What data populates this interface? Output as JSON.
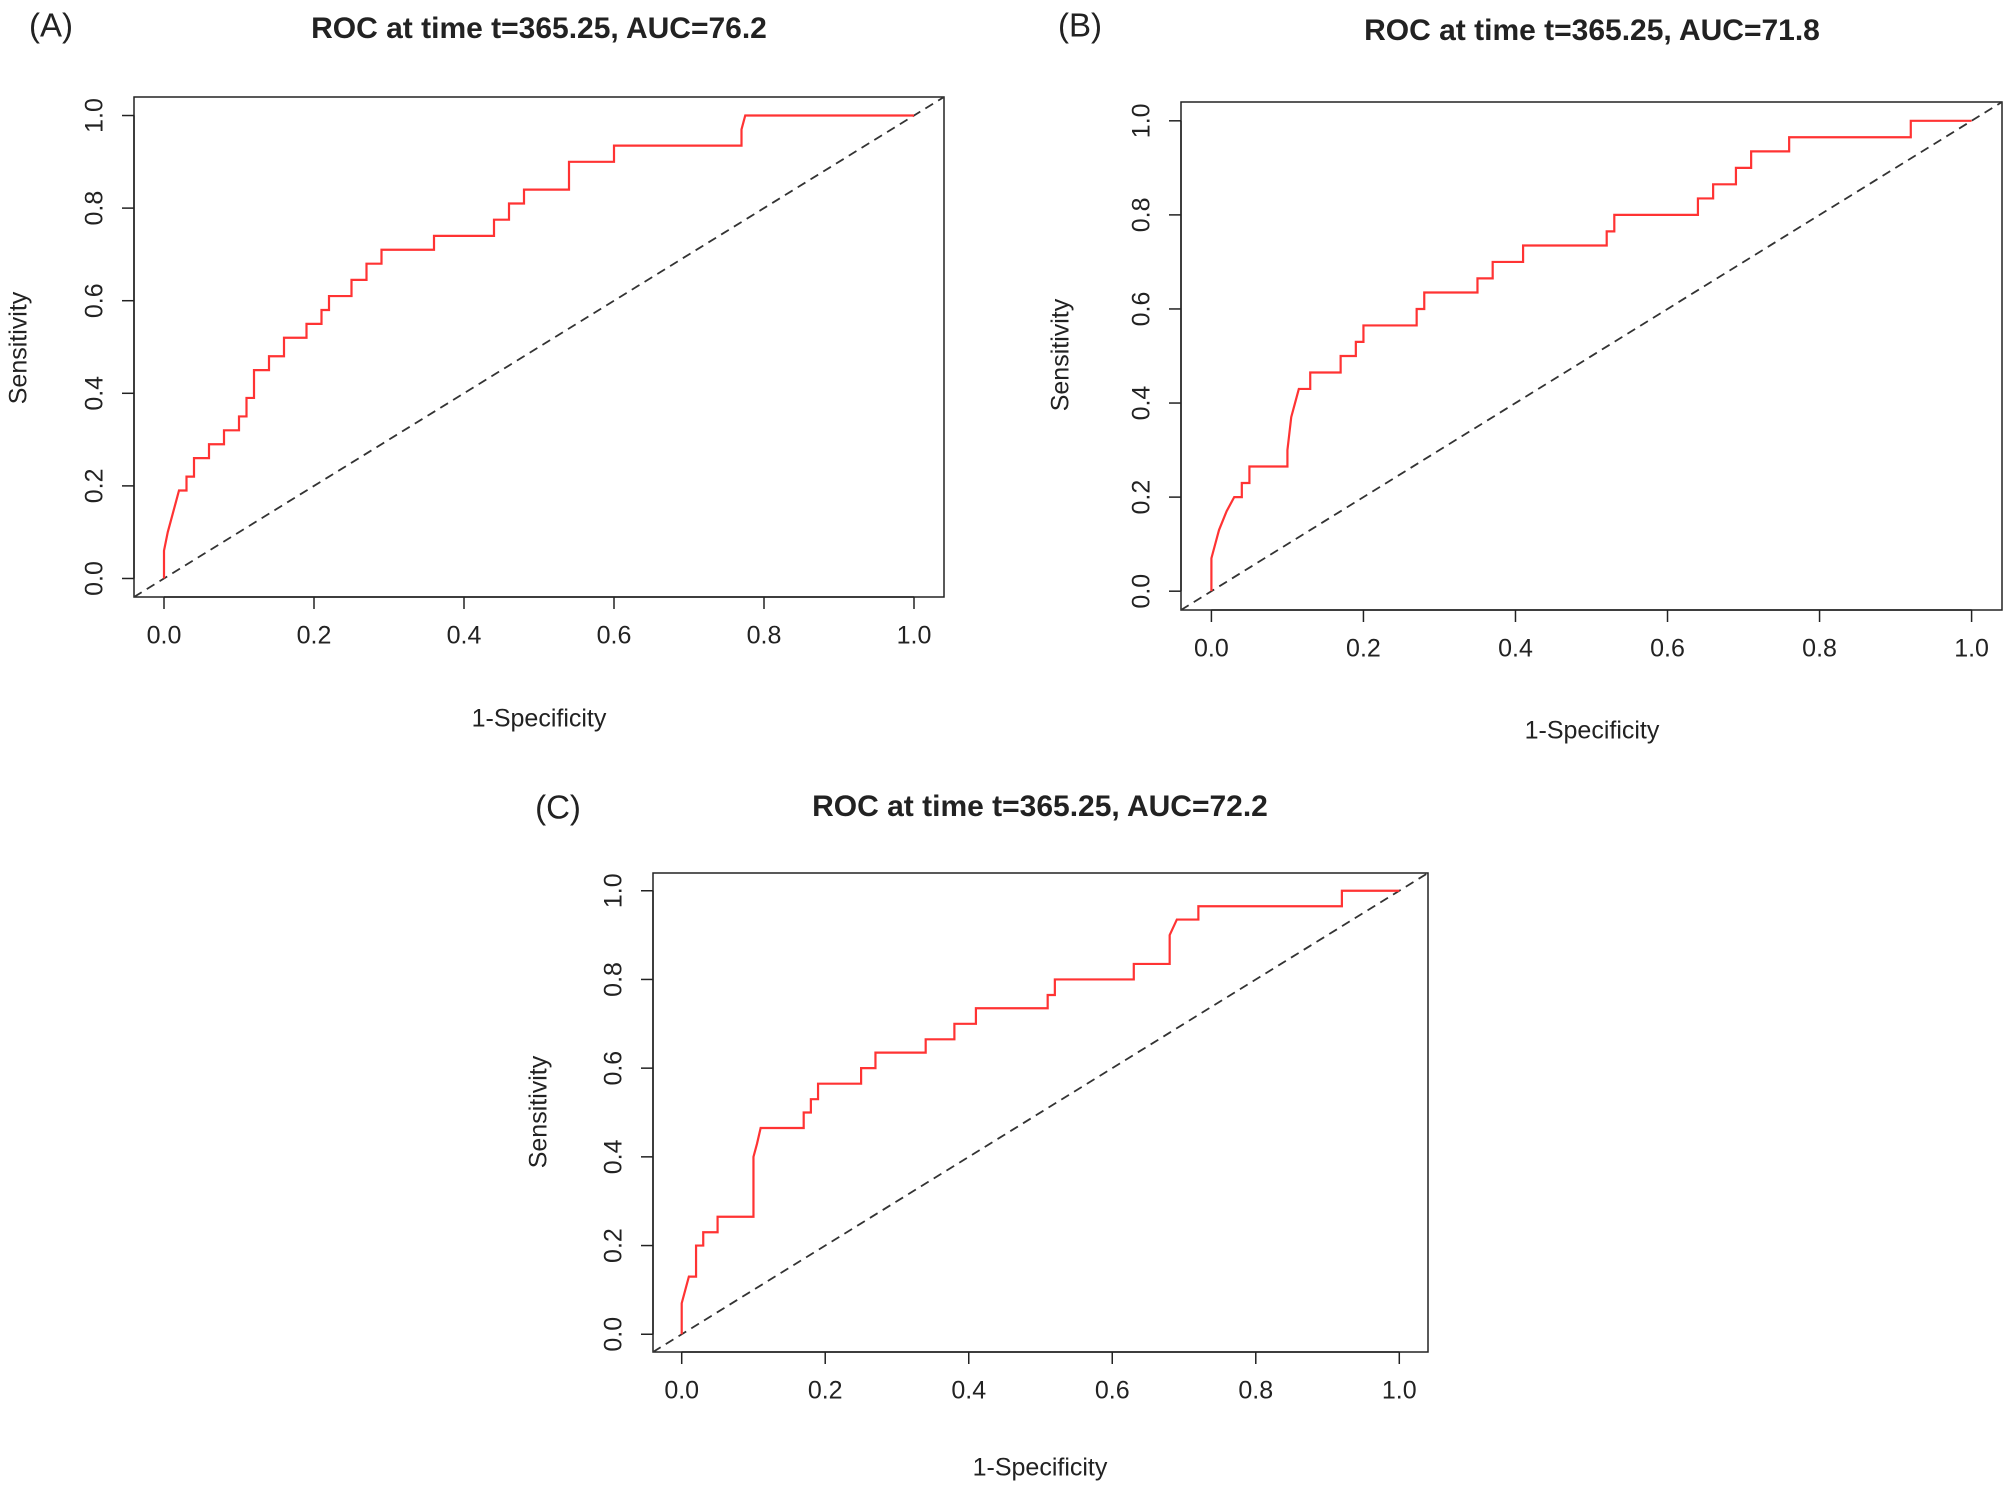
{
  "chart_data": [
    {
      "type": "line",
      "panel_label": "(A)",
      "title": "ROC at time t=365.25, AUC=76.2",
      "xlabel": "1-Specificity",
      "ylabel": "Sensitivity",
      "color": "#ff3333",
      "x": [
        0,
        0,
        0.005,
        0.01,
        0.015,
        0.02,
        0.03,
        0.03,
        0.04,
        0.04,
        0.06,
        0.06,
        0.08,
        0.08,
        0.1,
        0.1,
        0.11,
        0.11,
        0.12,
        0.12,
        0.14,
        0.14,
        0.16,
        0.16,
        0.19,
        0.19,
        0.21,
        0.21,
        0.22,
        0.22,
        0.25,
        0.25,
        0.27,
        0.27,
        0.29,
        0.29,
        0.36,
        0.36,
        0.44,
        0.44,
        0.46,
        0.46,
        0.48,
        0.48,
        0.54,
        0.54,
        0.6,
        0.6,
        0.77,
        0.77,
        0.775,
        1
      ],
      "values": [
        0,
        0.06,
        0.1,
        0.13,
        0.16,
        0.19,
        0.19,
        0.22,
        0.22,
        0.26,
        0.26,
        0.29,
        0.29,
        0.32,
        0.32,
        0.35,
        0.35,
        0.39,
        0.39,
        0.45,
        0.45,
        0.48,
        0.48,
        0.52,
        0.52,
        0.55,
        0.55,
        0.58,
        0.58,
        0.61,
        0.61,
        0.645,
        0.645,
        0.68,
        0.68,
        0.71,
        0.71,
        0.74,
        0.74,
        0.775,
        0.775,
        0.81,
        0.81,
        0.84,
        0.84,
        0.9,
        0.9,
        0.935,
        0.935,
        0.97,
        1,
        1
      ],
      "xlim": [
        -0.04,
        1.04
      ],
      "ylim": [
        -0.04,
        1.04
      ],
      "xticks": [
        {
          "value": 0,
          "label": "0.0"
        },
        0.2,
        0.4,
        0.6,
        0.8,
        {
          "value": 1,
          "label": "1.0"
        }
      ],
      "yticks": [
        {
          "value": 0,
          "label": "0.0"
        },
        0.2,
        0.4,
        0.6,
        0.8,
        {
          "value": 1,
          "label": "1.0"
        }
      ]
    },
    {
      "type": "line",
      "panel_label": "(B)",
      "title": "ROC at time t=365.25, AUC=71.8",
      "xlabel": "1-Specificity",
      "ylabel": "Sensitivity",
      "color": "#ff3333",
      "x": [
        0,
        0,
        0.005,
        0.01,
        0.02,
        0.03,
        0.04,
        0.04,
        0.05,
        0.05,
        0.1,
        0.1,
        0.105,
        0.11,
        0.115,
        0.13,
        0.13,
        0.17,
        0.17,
        0.19,
        0.19,
        0.2,
        0.2,
        0.27,
        0.27,
        0.28,
        0.28,
        0.35,
        0.35,
        0.37,
        0.37,
        0.41,
        0.41,
        0.52,
        0.52,
        0.53,
        0.53,
        0.64,
        0.64,
        0.66,
        0.66,
        0.69,
        0.69,
        0.71,
        0.71,
        0.76,
        0.76,
        0.92,
        0.92,
        1
      ],
      "values": [
        0,
        0.07,
        0.1,
        0.13,
        0.17,
        0.2,
        0.2,
        0.23,
        0.23,
        0.265,
        0.265,
        0.3,
        0.37,
        0.4,
        0.43,
        0.43,
        0.465,
        0.465,
        0.5,
        0.5,
        0.53,
        0.53,
        0.565,
        0.565,
        0.6,
        0.6,
        0.635,
        0.635,
        0.665,
        0.665,
        0.7,
        0.7,
        0.735,
        0.735,
        0.765,
        0.765,
        0.8,
        0.8,
        0.835,
        0.835,
        0.865,
        0.865,
        0.9,
        0.9,
        0.935,
        0.935,
        0.965,
        0.965,
        1,
        1
      ],
      "xlim": [
        -0.04,
        1.04
      ],
      "ylim": [
        -0.04,
        1.04
      ],
      "xticks": [
        {
          "value": 0,
          "label": "0.0"
        },
        0.2,
        0.4,
        0.6,
        0.8,
        {
          "value": 1,
          "label": "1.0"
        }
      ],
      "yticks": [
        {
          "value": 0,
          "label": "0.0"
        },
        0.2,
        0.4,
        0.6,
        0.8,
        {
          "value": 1,
          "label": "1.0"
        }
      ]
    },
    {
      "type": "line",
      "panel_label": "(C)",
      "title": "ROC at time t=365.25, AUC=72.2",
      "xlabel": "1-Specificity",
      "ylabel": "Sensitivity",
      "color": "#ff3333",
      "x": [
        0,
        0,
        0.005,
        0.01,
        0.02,
        0.02,
        0.03,
        0.03,
        0.05,
        0.05,
        0.1,
        0.1,
        0.105,
        0.11,
        0.17,
        0.17,
        0.18,
        0.18,
        0.19,
        0.19,
        0.25,
        0.25,
        0.27,
        0.27,
        0.34,
        0.34,
        0.38,
        0.38,
        0.41,
        0.41,
        0.51,
        0.51,
        0.52,
        0.52,
        0.63,
        0.63,
        0.68,
        0.68,
        0.69,
        0.72,
        0.72,
        0.92,
        0.92,
        1
      ],
      "values": [
        0,
        0.07,
        0.1,
        0.13,
        0.13,
        0.2,
        0.2,
        0.23,
        0.23,
        0.265,
        0.265,
        0.4,
        0.43,
        0.465,
        0.465,
        0.5,
        0.5,
        0.53,
        0.53,
        0.565,
        0.565,
        0.6,
        0.6,
        0.635,
        0.635,
        0.665,
        0.665,
        0.7,
        0.7,
        0.735,
        0.735,
        0.765,
        0.765,
        0.8,
        0.8,
        0.835,
        0.835,
        0.9,
        0.935,
        0.935,
        0.965,
        0.965,
        1,
        1
      ],
      "xlim": [
        -0.04,
        1.04
      ],
      "ylim": [
        -0.04,
        1.04
      ],
      "xticks": [
        {
          "value": 0,
          "label": "0.0"
        },
        0.2,
        0.4,
        0.6,
        0.8,
        {
          "value": 1,
          "label": "1.0"
        }
      ],
      "yticks": [
        {
          "value": 0,
          "label": "0.0"
        },
        0.2,
        0.4,
        0.6,
        0.8,
        {
          "value": 1,
          "label": "1.0"
        }
      ]
    }
  ]
}
